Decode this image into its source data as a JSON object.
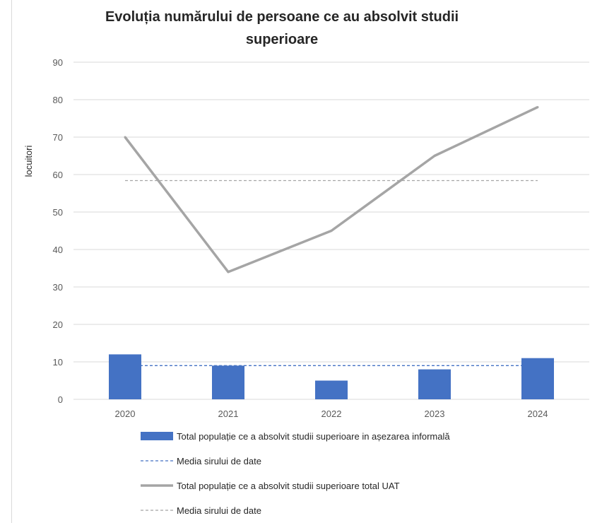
{
  "chart_data": {
    "type": "bar",
    "title_line1": "Evoluția numărului de persoane ce au absolvit studii",
    "title_line2": "superioare",
    "ylabel": "locuitori",
    "xlabel": "",
    "categories": [
      "2020",
      "2021",
      "2022",
      "2023",
      "2024"
    ],
    "ylim": [
      0,
      90
    ],
    "yticks": [
      0,
      10,
      20,
      30,
      40,
      50,
      60,
      70,
      80,
      90
    ],
    "grid": true,
    "legend_position": "bottom",
    "series": [
      {
        "name": "Total populație ce a absolvit studii superioare in așezarea informală",
        "kind": "bar",
        "color": "#4472c4",
        "values": [
          12,
          9,
          5,
          8,
          11
        ]
      },
      {
        "name": "Media sirului de date",
        "kind": "dashed-line",
        "color": "#4472c4",
        "values": [
          9,
          9,
          9,
          9,
          9
        ]
      },
      {
        "name": "Total populație ce a absolvit studii superioare total UAT",
        "kind": "line",
        "color": "#a5a5a5",
        "values": [
          70,
          34,
          45,
          65,
          78
        ]
      },
      {
        "name": "Media sirului de date",
        "kind": "dashed-line",
        "color": "#a5a5a5",
        "values": [
          58.4,
          58.4,
          58.4,
          58.4,
          58.4
        ]
      }
    ]
  }
}
